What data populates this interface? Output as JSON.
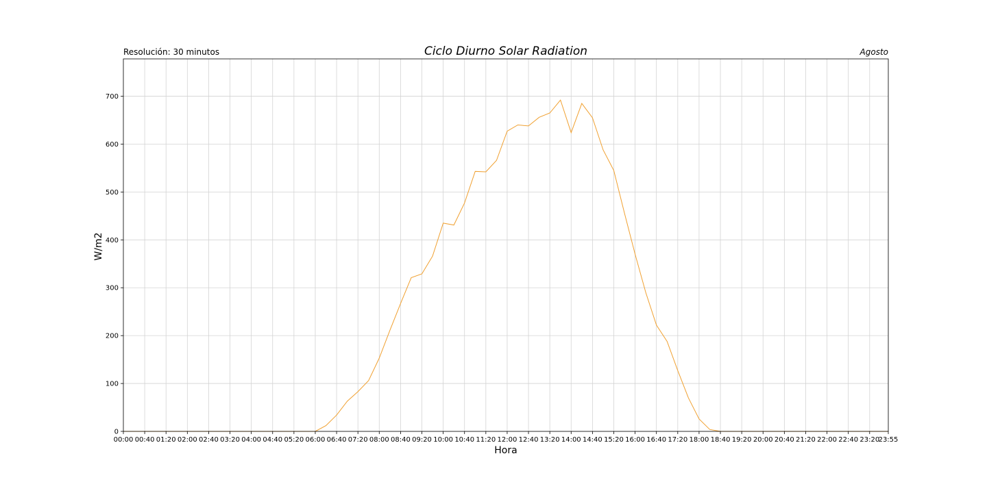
{
  "chart_data": {
    "type": "line",
    "title": "Ciclo Diurno Solar Radiation",
    "subtitle_left": "Resolución: 30 minutos",
    "subtitle_right": "Agosto",
    "xlabel": "Hora",
    "ylabel": "W/m2",
    "ylim": [
      0,
      778
    ],
    "yticks": [
      0,
      100,
      200,
      300,
      400,
      500,
      600,
      700
    ],
    "xticks": [
      "00:00",
      "00:40",
      "01:20",
      "02:00",
      "02:40",
      "03:20",
      "04:00",
      "04:40",
      "05:20",
      "06:00",
      "06:40",
      "07:20",
      "08:00",
      "08:40",
      "09:20",
      "10:00",
      "10:40",
      "11:20",
      "12:00",
      "12:40",
      "13:20",
      "14:00",
      "14:40",
      "15:20",
      "16:00",
      "16:40",
      "17:20",
      "18:00",
      "18:40",
      "19:20",
      "20:00",
      "20:40",
      "21:20",
      "22:00",
      "22:40",
      "23:20",
      "23:55"
    ],
    "grid": true,
    "line_color": "#f0a030",
    "series": [
      {
        "x": [
          "00:00",
          "00:20",
          "00:40",
          "01:00",
          "01:20",
          "01:40",
          "02:00",
          "02:20",
          "02:40",
          "03:00",
          "03:20",
          "03:40",
          "04:00",
          "04:20",
          "04:40",
          "05:00",
          "05:20",
          "05:40",
          "06:00",
          "06:20",
          "06:40",
          "07:00",
          "07:20",
          "07:40",
          "08:00",
          "08:20",
          "08:40",
          "09:00",
          "09:20",
          "09:40",
          "10:00",
          "10:20",
          "10:40",
          "11:00",
          "11:20",
          "11:40",
          "12:00",
          "12:20",
          "12:40",
          "13:00",
          "13:20",
          "13:40",
          "14:00",
          "14:20",
          "14:40",
          "15:00",
          "15:20",
          "15:40",
          "16:00",
          "16:20",
          "16:40",
          "17:00",
          "17:20",
          "17:40",
          "18:00",
          "18:20",
          "18:40",
          "19:00",
          "19:20",
          "19:40",
          "20:00",
          "20:20",
          "20:40",
          "21:00",
          "21:20",
          "21:40",
          "22:00",
          "22:20",
          "22:40",
          "23:00",
          "23:20",
          "23:40",
          "23:55"
        ],
        "values": [
          0,
          0,
          0,
          0,
          0,
          0,
          0,
          0,
          0,
          0,
          0,
          0,
          0,
          0,
          0,
          0,
          0,
          0,
          0,
          12,
          34,
          63,
          83,
          106,
          153,
          211,
          267,
          321,
          329,
          366,
          435,
          431,
          477,
          543,
          542,
          566,
          627,
          640,
          638,
          656,
          665,
          692,
          624,
          685,
          655,
          588,
          545,
          456,
          370,
          290,
          222,
          188,
          127,
          70,
          26,
          4,
          0,
          0,
          0,
          0,
          0,
          0,
          0,
          0,
          0,
          0,
          0,
          0,
          0,
          0,
          0,
          0,
          0
        ]
      }
    ]
  }
}
